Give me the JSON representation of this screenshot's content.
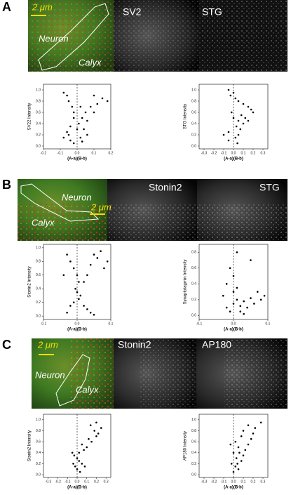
{
  "panels": [
    {
      "letter": "A",
      "scale_bar": "2 μm",
      "neuron": "Neuron",
      "calyx": "Calyx",
      "channels": [
        "SV2",
        "STG"
      ]
    },
    {
      "letter": "B",
      "scale_bar": "2 μm",
      "neuron": "Neuron",
      "calyx": "Calyx",
      "channels": [
        "Stonin2",
        "STG"
      ]
    },
    {
      "letter": "C",
      "scale_bar": "2 μm",
      "neuron": "Neuron",
      "calyx": "Calyx",
      "channels": [
        "Stonin2",
        "AP180"
      ]
    }
  ],
  "chart_data": [
    {
      "type": "scatter",
      "xlabel": "(A-a)(B-b)",
      "ylabel": "SV22 Intensity",
      "color": "#000000",
      "x": [
        -0.08,
        -0.06,
        0.1,
        0.15,
        0.18,
        -0.05,
        0.12,
        -0.03,
        0.08,
        0.05,
        -0.02,
        0.1,
        0.03,
        -0.02,
        0.06,
        0.01,
        -0.04,
        0.04,
        -0.06,
        0.06,
        -0.05,
        0.02,
        -0.04,
        0.03,
        -0.02,
        0.0,
        0.02,
        -0.08
      ],
      "values": [
        0.95,
        0.9,
        0.9,
        0.85,
        0.8,
        0.8,
        0.75,
        0.7,
        0.7,
        0.6,
        0.6,
        0.6,
        0.5,
        0.5,
        0.45,
        0.4,
        0.35,
        0.3,
        0.25,
        0.2,
        0.2,
        0.15,
        0.1,
        0.08,
        0.05,
        0.3,
        0.7,
        0.15
      ],
      "xlim": [
        -0.2,
        0.2
      ],
      "xticks": [
        -0.2,
        -0.1,
        {
          "value": 0,
          "label": "0.0"
        },
        0.1,
        0.2
      ],
      "ylim": [
        -0.05,
        1.1
      ],
      "yticks": [
        {
          "value": 0,
          "label": "0.0"
        },
        0.2,
        0.4,
        0.6,
        0.8,
        {
          "value": 1,
          "label": "1.0"
        }
      ]
    },
    {
      "type": "scatter",
      "xlabel": "(A-a)(B-b)",
      "ylabel": "STG Intensity",
      "color": "#000000",
      "x": [
        -0.05,
        0.0,
        -0.03,
        0.02,
        0.05,
        0.1,
        0.15,
        0.18,
        0.2,
        0.08,
        0.12,
        0.05,
        0.1,
        0.03,
        0.07,
        -0.05,
        0.05,
        -0.1,
        0.02,
        -0.05,
        0.04,
        0.0,
        -0.02,
        0.15
      ],
      "values": [
        1.0,
        0.95,
        0.9,
        0.85,
        0.8,
        0.75,
        0.7,
        0.65,
        0.6,
        0.55,
        0.5,
        0.45,
        0.4,
        0.35,
        0.3,
        0.25,
        0.2,
        0.2,
        0.15,
        0.1,
        0.05,
        0.5,
        0.6,
        0.45
      ],
      "xlim": [
        -0.35,
        0.35
      ],
      "xticks": [
        -0.3,
        -0.2,
        -0.1,
        {
          "value": 0,
          "label": "0.0"
        },
        0.1,
        0.2,
        0.3
      ],
      "ylim": [
        -0.05,
        1.1
      ],
      "yticks": [
        {
          "value": 0,
          "label": "0.0"
        },
        0.2,
        0.4,
        0.6,
        0.8,
        {
          "value": 1,
          "label": "1.0"
        }
      ]
    },
    {
      "type": "scatter",
      "xlabel": "(A-a)(B-b)",
      "ylabel": "Stonin2 Intensity",
      "color": "#000000",
      "x": [
        -0.03,
        -0.02,
        -0.01,
        0.0,
        0.005,
        -0.005,
        0.0,
        0.01,
        0.005,
        -0.01,
        -0.02,
        0.02,
        0.03,
        0.04,
        0.05,
        -0.03,
        0.04,
        0.05,
        0.06,
        0.08,
        0.03,
        0.07,
        -0.04,
        0.02,
        0.09
      ],
      "values": [
        0.9,
        0.8,
        0.7,
        0.6,
        0.5,
        0.4,
        0.35,
        0.3,
        0.25,
        0.2,
        0.15,
        0.15,
        0.1,
        0.05,
        0.02,
        0.05,
        0.75,
        0.9,
        0.85,
        0.7,
        0.6,
        0.95,
        0.6,
        0.5,
        0.8
      ],
      "xlim": [
        -0.1,
        0.1
      ],
      "xticks": [
        -0.1,
        {
          "value": 0,
          "label": "0.0"
        },
        0.1
      ],
      "ylim": [
        -0.05,
        1.05
      ],
      "yticks": [
        {
          "value": 0,
          "label": "0.0"
        },
        0.2,
        0.4,
        0.6,
        0.8,
        {
          "value": 1,
          "label": "1.0"
        }
      ]
    },
    {
      "type": "scatter",
      "xlabel": "(A-a)(B-b)",
      "ylabel": "Synaptotagmin Intensity",
      "color": "#000000",
      "x": [
        -0.02,
        0.0,
        0.01,
        0.02,
        0.03,
        0.04,
        0.05,
        0.06,
        0.08,
        -0.01,
        0.0,
        0.01,
        -0.03,
        0.02,
        0.03,
        0.0,
        0.05,
        -0.01,
        0.07,
        0.09,
        0.01,
        -0.02
      ],
      "values": [
        0.1,
        0.15,
        0.2,
        0.12,
        0.18,
        0.1,
        0.22,
        0.15,
        0.2,
        0.05,
        0.3,
        0.35,
        0.25,
        0.05,
        0.02,
        0.5,
        0.7,
        0.6,
        0.3,
        0.25,
        0.8,
        0.4
      ],
      "xlim": [
        -0.1,
        0.1
      ],
      "xticks": [
        -0.1,
        {
          "value": 0,
          "label": "0.0"
        },
        0.1
      ],
      "ylim": [
        -0.05,
        0.9
      ],
      "yticks": [
        {
          "value": 0,
          "label": "0.0"
        },
        0.2,
        0.4,
        0.6,
        0.8
      ]
    },
    {
      "type": "scatter",
      "xlabel": "(A-a)(B-b)",
      "ylabel": "Stonin2 Intensity",
      "color": "#000000",
      "x": [
        0.0,
        0.02,
        -0.03,
        0.05,
        0.08,
        -0.05,
        0.1,
        0.15,
        0.2,
        0.12,
        0.18,
        0.22,
        0.05,
        0.0,
        0.03,
        -0.02,
        0.07,
        0.25,
        0.14,
        0.2,
        0.02,
        -0.04
      ],
      "values": [
        0.3,
        0.25,
        0.35,
        0.2,
        0.15,
        0.4,
        0.5,
        0.6,
        0.7,
        0.65,
        0.8,
        0.75,
        0.55,
        0.1,
        0.05,
        0.15,
        0.45,
        0.85,
        0.9,
        0.95,
        0.4,
        0.2
      ],
      "xlim": [
        -0.35,
        0.35
      ],
      "xticks": [
        -0.3,
        -0.2,
        -0.1,
        {
          "value": 0,
          "label": "0.0"
        },
        0.1,
        0.2,
        0.3
      ],
      "ylim": [
        -0.05,
        1.1
      ],
      "yticks": [
        {
          "value": 0,
          "label": "0.0"
        },
        0.2,
        0.4,
        0.6,
        0.8,
        {
          "value": 1,
          "label": "1.0"
        }
      ]
    },
    {
      "type": "scatter",
      "xlabel": "(A-a)(B-b)",
      "ylabel": "AP180 Intensity",
      "color": "#000000",
      "x": [
        0.0,
        0.05,
        0.02,
        -0.02,
        0.08,
        0.03,
        0.1,
        0.0,
        0.12,
        0.05,
        0.15,
        0.02,
        0.18,
        0.08,
        0.2,
        0.1,
        0.22,
        0.15,
        0.28,
        -0.03,
        0.04,
        0.06
      ],
      "values": [
        0.05,
        0.1,
        0.15,
        0.2,
        0.25,
        0.3,
        0.35,
        0.4,
        0.45,
        0.5,
        0.55,
        0.6,
        0.65,
        0.7,
        0.75,
        0.8,
        0.85,
        0.9,
        0.95,
        0.55,
        0.2,
        0.4
      ],
      "xlim": [
        -0.35,
        0.35
      ],
      "xticks": [
        -0.3,
        -0.2,
        -0.1,
        {
          "value": 0,
          "label": "0.0"
        },
        0.1,
        0.2,
        0.3
      ],
      "ylim": [
        -0.05,
        1.1
      ],
      "yticks": [
        {
          "value": 0,
          "label": "0.0"
        },
        0.2,
        0.4,
        0.6,
        0.8,
        {
          "value": 1,
          "label": "1.0"
        }
      ]
    }
  ]
}
